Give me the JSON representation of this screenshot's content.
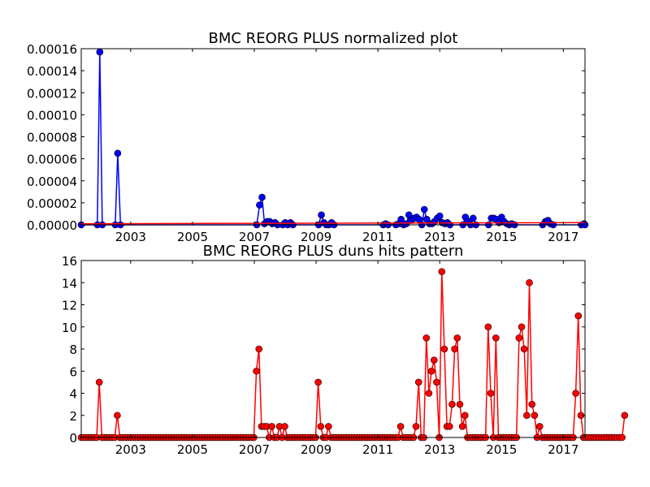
{
  "chart_data": [
    {
      "type": "line",
      "title": "BMC REORG PLUS normalized plot",
      "xlabel": "",
      "ylabel": "",
      "xlim": [
        2001.4,
        2017.7
      ],
      "ylim": [
        0,
        0.00016
      ],
      "x_ticks": [
        "2003",
        "2005",
        "2007",
        "2009",
        "2011",
        "2013",
        "2015",
        "2017"
      ],
      "y_ticks": [
        "0.00000",
        "0.00002",
        "0.00004",
        "0.00006",
        "0.00008",
        "0.00010",
        "0.00012",
        "0.00014",
        "0.00016"
      ],
      "grid": false,
      "series": [
        {
          "color": "#0000ff",
          "marker": "circle",
          "points": [
            [
              2001.4,
              0
            ],
            [
              2001.92,
              0
            ],
            [
              2002.0,
              0.000157
            ],
            [
              2002.08,
              0
            ],
            [
              2002.5,
              0
            ],
            [
              2002.58,
              6.5e-05
            ],
            [
              2002.67,
              0
            ],
            [
              2007.08,
              0
            ],
            [
              2007.17,
              1.8e-05
            ],
            [
              2007.25,
              2.5e-05
            ],
            [
              2007.33,
              1e-06
            ],
            [
              2007.42,
              3e-06
            ],
            [
              2007.5,
              3e-06
            ],
            [
              2007.58,
              1e-06
            ],
            [
              2007.67,
              2e-06
            ],
            [
              2007.75,
              0
            ],
            [
              2007.92,
              0
            ],
            [
              2008.0,
              2e-06
            ],
            [
              2008.08,
              0
            ],
            [
              2008.17,
              2e-06
            ],
            [
              2008.25,
              0
            ],
            [
              2009.08,
              0
            ],
            [
              2009.17,
              9e-06
            ],
            [
              2009.25,
              2e-06
            ],
            [
              2009.33,
              0
            ],
            [
              2009.42,
              0
            ],
            [
              2009.5,
              2e-06
            ],
            [
              2009.58,
              0
            ],
            [
              2011.17,
              0
            ],
            [
              2011.25,
              1e-06
            ],
            [
              2011.33,
              0
            ],
            [
              2011.58,
              0
            ],
            [
              2011.67,
              1e-06
            ],
            [
              2011.75,
              5e-06
            ],
            [
              2011.83,
              0
            ],
            [
              2011.92,
              1e-06
            ],
            [
              2012.0,
              9e-06
            ],
            [
              2012.08,
              4e-06
            ],
            [
              2012.17,
              6e-06
            ],
            [
              2012.25,
              7e-06
            ],
            [
              2012.33,
              5e-06
            ],
            [
              2012.42,
              0
            ],
            [
              2012.5,
              1.4e-05
            ],
            [
              2012.58,
              5e-06
            ],
            [
              2012.67,
              1e-06
            ],
            [
              2012.75,
              1e-06
            ],
            [
              2012.83,
              3e-06
            ],
            [
              2012.92,
              6e-06
            ],
            [
              2013.0,
              8e-06
            ],
            [
              2013.08,
              2e-06
            ],
            [
              2013.17,
              1e-06
            ],
            [
              2013.25,
              2e-06
            ],
            [
              2013.33,
              0
            ],
            [
              2013.75,
              0
            ],
            [
              2013.83,
              7e-06
            ],
            [
              2013.92,
              3e-06
            ],
            [
              2014.0,
              0
            ],
            [
              2014.08,
              6e-06
            ],
            [
              2014.17,
              0
            ],
            [
              2014.58,
              0
            ],
            [
              2014.67,
              6e-06
            ],
            [
              2014.75,
              6e-06
            ],
            [
              2014.83,
              5e-06
            ],
            [
              2014.92,
              2e-06
            ],
            [
              2015.0,
              7e-06
            ],
            [
              2015.08,
              3e-06
            ],
            [
              2015.17,
              1e-06
            ],
            [
              2015.25,
              0
            ],
            [
              2015.33,
              1e-06
            ],
            [
              2015.42,
              0
            ],
            [
              2016.33,
              0
            ],
            [
              2016.42,
              3e-06
            ],
            [
              2016.5,
              4e-06
            ],
            [
              2016.58,
              1e-06
            ],
            [
              2016.67,
              0
            ],
            [
              2017.58,
              0
            ],
            [
              2017.67,
              1e-06
            ],
            [
              2017.7,
              0
            ]
          ]
        },
        {
          "color": "#ff0000",
          "marker": "none",
          "points": [
            [
              2001.4,
              1e-06
            ],
            [
              2017.7,
              2e-06
            ]
          ]
        }
      ]
    },
    {
      "type": "line",
      "title": "BMC REORG PLUS duns hits pattern",
      "xlabel": "",
      "ylabel": "",
      "xlim": [
        2001.4,
        2017.7
      ],
      "ylim": [
        0,
        16
      ],
      "x_ticks": [
        "2003",
        "2005",
        "2007",
        "2009",
        "2011",
        "2013",
        "2015",
        "2017"
      ],
      "y_ticks": [
        "0",
        "2",
        "4",
        "6",
        "8",
        "10",
        "12",
        "14",
        "16"
      ],
      "grid": false,
      "series": [
        {
          "color": "#ff0000",
          "marker": "circle",
          "x_start": 2001.4,
          "x_step": 0.0833333,
          "values": [
            0,
            0,
            0,
            0,
            0,
            0,
            0,
            5,
            0,
            0,
            0,
            0,
            0,
            0,
            2,
            0,
            0,
            0,
            0,
            0,
            0,
            0,
            0,
            0,
            0,
            0,
            0,
            0,
            0,
            0,
            0,
            0,
            0,
            0,
            0,
            0,
            0,
            0,
            0,
            0,
            0,
            0,
            0,
            0,
            0,
            0,
            0,
            0,
            0,
            0,
            0,
            0,
            0,
            0,
            0,
            0,
            0,
            0,
            0,
            0,
            0,
            0,
            0,
            0,
            0,
            0,
            0,
            0,
            6,
            8,
            1,
            1,
            1,
            0,
            1,
            0,
            0,
            1,
            0,
            1,
            0,
            0,
            0,
            0,
            0,
            0,
            0,
            0,
            0,
            0,
            0,
            0,
            5,
            1,
            0,
            0,
            1,
            0,
            0,
            0,
            0,
            0,
            0,
            0,
            0,
            0,
            0,
            0,
            0,
            0,
            0,
            0,
            0,
            0,
            0,
            0,
            0,
            0,
            0,
            0,
            0,
            0,
            0,
            0,
            1,
            0,
            0,
            0,
            0,
            0,
            1,
            5,
            0,
            0,
            9,
            4,
            6,
            7,
            5,
            0,
            15,
            8,
            1,
            1,
            3,
            8,
            9,
            3,
            1,
            2,
            0,
            0,
            0,
            0,
            0,
            0,
            0,
            0,
            10,
            4,
            0,
            9,
            0,
            0,
            0,
            0,
            0,
            0,
            0,
            0,
            9,
            10,
            8,
            2,
            14,
            3,
            2,
            0,
            1,
            0,
            0,
            0,
            0,
            0,
            0,
            0,
            0,
            0,
            0,
            0,
            0,
            0,
            4,
            11,
            2,
            0,
            0,
            0,
            0,
            0,
            0,
            0,
            0,
            0,
            0,
            0,
            0,
            0,
            0,
            0,
            0,
            2
          ]
        }
      ]
    }
  ]
}
